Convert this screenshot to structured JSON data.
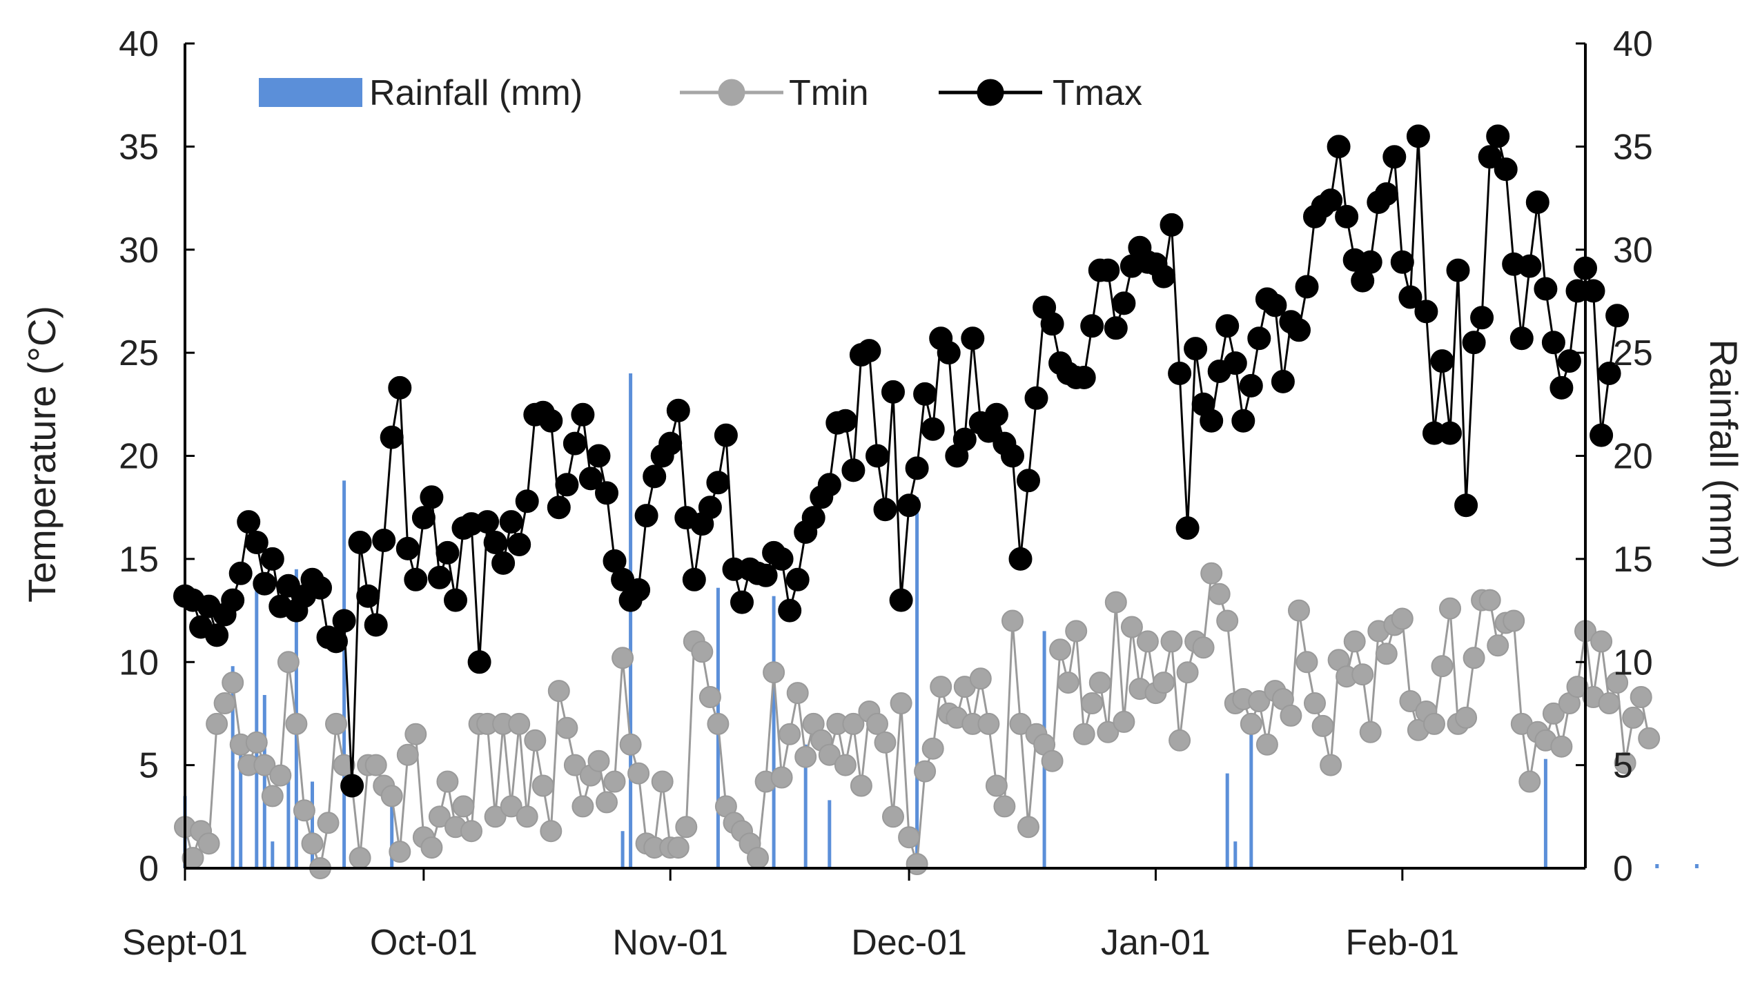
{
  "chart_data": {
    "type": "line+bar",
    "title": "",
    "ylabel_left": "Temperature (°C)",
    "ylabel_right": "Rainfall (mm)",
    "ylim_left": [
      0,
      40
    ],
    "ylim_right": [
      0,
      40
    ],
    "yticks_left": [
      "0",
      "5",
      "10",
      "15",
      "20",
      "25",
      "30",
      "35",
      "40"
    ],
    "yticks_right": [
      "0",
      "5",
      "10",
      "15",
      "20",
      "25",
      "30",
      "35",
      "40"
    ],
    "x_domain_days": [
      0,
      176
    ],
    "x_tick_labels": [
      {
        "label": "Sept-01",
        "day": 0
      },
      {
        "label": "Oct-01",
        "day": 30
      },
      {
        "label": "Nov-01",
        "day": 61
      },
      {
        "label": "Dec-01",
        "day": 91
      },
      {
        "label": "Jan-01",
        "day": 122
      },
      {
        "label": "Feb-01",
        "day": 153
      }
    ],
    "legend": [
      "Rainfall (mm)",
      "Tmin",
      "Tmax"
    ],
    "colors": {
      "rainfall": "#5B8FD9",
      "tmin": "#A6A6A6",
      "tmax": "#000000"
    },
    "series": [
      {
        "name": "Tmax",
        "values": [
          13.2,
          13.0,
          11.7,
          12.7,
          11.3,
          12.3,
          13.0,
          14.3,
          16.8,
          15.8,
          13.8,
          15.0,
          12.7,
          13.7,
          12.5,
          13.2,
          14.0,
          13.6,
          11.2,
          11.0,
          12.0,
          4.0,
          15.8,
          13.2,
          11.8,
          15.9,
          20.9,
          23.3,
          15.5,
          14.0,
          17.0,
          18.0,
          14.1,
          15.3,
          13.0,
          16.5,
          16.7,
          10.0,
          16.8,
          15.8,
          14.8,
          16.8,
          15.7,
          17.8,
          22.0,
          22.1,
          21.7,
          17.5,
          18.6,
          20.6,
          22.0,
          18.9,
          20.0,
          18.2,
          14.9,
          14.0,
          13.0,
          13.5,
          17.1,
          19.0,
          20.0,
          20.6,
          22.2,
          17.0,
          14.0,
          16.7,
          17.5,
          18.7,
          21.0,
          14.5,
          12.9,
          14.5,
          14.3,
          14.2,
          15.3,
          15.0,
          12.5,
          14.0,
          16.3,
          17.0,
          18.0,
          18.6,
          21.6,
          21.7,
          19.3,
          24.9,
          25.1,
          20.0,
          17.4,
          23.1,
          13.0,
          17.6,
          19.4,
          23.0,
          21.3,
          25.7,
          25.0,
          20.0,
          20.8,
          25.7,
          21.6,
          21.2,
          22.0,
          20.6,
          20.0,
          15.0,
          18.8,
          22.8,
          27.2,
          26.4,
          24.5,
          24.0,
          23.8,
          23.8,
          26.3,
          29.0,
          29.0,
          26.2,
          27.4,
          29.2,
          30.1,
          29.4,
          29.3,
          28.7,
          31.2,
          24.0,
          16.5,
          25.2,
          22.5,
          21.7,
          24.1,
          26.3,
          24.5,
          21.7,
          23.4,
          25.7,
          27.6,
          27.3,
          23.6,
          26.5,
          26.1,
          28.2,
          31.6,
          32.1,
          32.4,
          35.0,
          31.6,
          29.5,
          28.5,
          29.4,
          32.3,
          32.7,
          34.5,
          29.4,
          27.7,
          35.5,
          27.0,
          21.1,
          24.6,
          21.1,
          29.0,
          17.6,
          25.5,
          26.7,
          34.5,
          35.5,
          33.9,
          29.3,
          25.7,
          29.2,
          32.3,
          28.1,
          25.5,
          23.3,
          24.6,
          28.0,
          29.1,
          28.0,
          21.0,
          24.0,
          26.8
        ]
      },
      {
        "name": "Tmin",
        "values": [
          2.0,
          0.5,
          1.8,
          1.2,
          7.0,
          8.0,
          9.0,
          6.0,
          5.0,
          6.1,
          5.0,
          3.5,
          4.5,
          10.0,
          7.0,
          2.8,
          1.2,
          0.0,
          2.2,
          7.0,
          5.0,
          4.0,
          0.5,
          5.0,
          5.0,
          4.0,
          3.5,
          0.8,
          5.5,
          6.5,
          1.5,
          1.0,
          2.5,
          4.2,
          2.0,
          3.0,
          1.8,
          7.0,
          7.0,
          2.5,
          7.0,
          3.0,
          7.0,
          2.5,
          6.2,
          4.0,
          1.8,
          8.6,
          6.8,
          5.0,
          3.0,
          4.5,
          5.2,
          3.2,
          4.2,
          10.2,
          6.0,
          4.6,
          1.2,
          1.0,
          4.2,
          1.0,
          1.0,
          2.0,
          11.0,
          10.5,
          8.3,
          7.0,
          3.0,
          2.2,
          1.8,
          1.2,
          0.5,
          4.2,
          9.5,
          4.4,
          6.5,
          8.5,
          5.4,
          7.0,
          6.2,
          5.5,
          7.0,
          5.0,
          7.0,
          4.0,
          7.6,
          7.0,
          6.1,
          2.5,
          8.0,
          1.5,
          0.2,
          4.7,
          5.8,
          8.8,
          7.5,
          7.3,
          8.8,
          7.0,
          9.2,
          7.0,
          4.0,
          3.0,
          12.0,
          7.0,
          2.0,
          6.5,
          6.0,
          5.2,
          10.6,
          9.0,
          11.5,
          6.5,
          8.0,
          9.0,
          6.6,
          12.9,
          7.1,
          11.7,
          8.7,
          11.0,
          8.5,
          9.0,
          11.0,
          6.2,
          9.5,
          11.0,
          10.7,
          14.3,
          13.3,
          12.0,
          8.0,
          8.2,
          7.0,
          8.1,
          6.0,
          8.6,
          8.2,
          7.4,
          12.5,
          10.0,
          8.0,
          6.9,
          5.0,
          10.1,
          9.3,
          11.0,
          9.4,
          6.6,
          11.5,
          10.4,
          11.8,
          12.1,
          8.1,
          6.7,
          7.6,
          7.0,
          9.8,
          12.6,
          7.0,
          7.3,
          10.2,
          13.0,
          13.0,
          10.8,
          11.9,
          12.0,
          7.0,
          4.2,
          6.6,
          6.2,
          7.5,
          5.9,
          8.0,
          8.8,
          11.5,
          8.3,
          11.0,
          8.0,
          9.0,
          5.1,
          7.3,
          8.3,
          6.3
        ]
      },
      {
        "name": "Rainfall (mm)",
        "values": [
          3.5,
          0,
          0,
          0,
          0,
          0,
          9.8,
          5.5,
          0,
          13.8,
          8.4,
          1.3,
          0,
          4.8,
          14.5,
          0,
          4.2,
          0,
          0,
          0,
          18.8,
          0,
          0,
          0,
          0,
          0,
          3.3,
          0,
          0,
          0,
          0,
          0,
          0,
          0,
          0,
          0,
          0,
          0,
          0,
          0,
          0,
          0,
          0,
          0,
          0,
          0,
          0,
          0,
          0,
          0,
          0,
          0,
          0,
          0,
          0,
          1.8,
          24.0,
          0,
          0,
          0,
          0,
          0,
          0,
          0,
          0,
          0,
          0,
          13.6,
          0,
          0,
          0,
          0,
          0,
          0,
          13.2,
          0,
          0,
          0,
          6.0,
          0,
          0,
          3.3,
          0,
          0,
          0,
          0,
          0,
          0,
          0,
          0,
          0,
          0,
          18.0,
          0,
          0,
          0,
          0,
          0,
          0,
          0,
          0,
          0,
          0,
          0,
          0,
          0,
          0,
          0,
          11.5,
          0,
          0,
          0,
          0,
          0,
          0,
          0,
          0,
          0,
          0,
          0,
          0,
          0,
          0,
          0,
          0,
          0,
          0,
          0,
          0,
          0,
          0,
          4.6,
          1.3,
          0,
          6.5,
          0,
          0,
          0,
          0,
          0,
          0,
          0,
          0,
          0,
          0,
          0,
          0,
          0,
          0,
          0,
          0,
          0,
          0,
          0,
          0,
          0,
          0,
          0,
          0,
          0,
          0,
          0,
          0,
          0,
          0,
          0,
          0,
          0,
          0,
          0,
          0,
          5.3,
          0,
          0,
          0,
          0,
          0,
          0,
          0,
          0,
          0,
          0,
          0,
          0,
          0,
          0.2,
          0,
          0,
          0,
          0,
          0.2,
          0,
          0
        ]
      }
    ]
  }
}
